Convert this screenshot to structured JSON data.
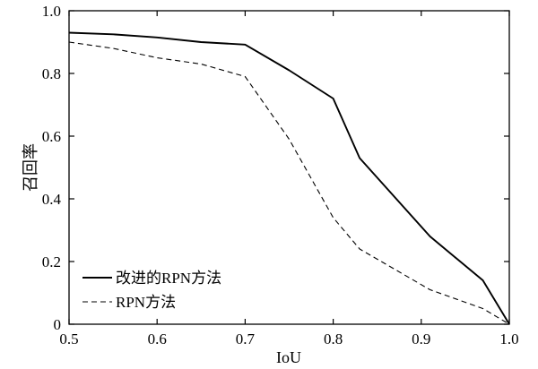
{
  "chart_data": {
    "type": "line",
    "title": "",
    "xlabel": "IoU",
    "ylabel": "召回率",
    "xlim": [
      0.5,
      1.0
    ],
    "ylim": [
      0,
      1.0
    ],
    "x_ticks": [
      "0.5",
      "0.6",
      "0.7",
      "0.8",
      "0.9",
      "1.0"
    ],
    "y_ticks": [
      "0",
      "0.2",
      "0.4",
      "0.6",
      "0.8",
      "1.0"
    ],
    "grid": false,
    "legend_position": "bottom-left",
    "series": [
      {
        "name": "改进的RPN方法",
        "style": "solid",
        "color": "#000000",
        "points": [
          [
            0.5,
            0.93
          ],
          [
            0.55,
            0.925
          ],
          [
            0.6,
            0.915
          ],
          [
            0.65,
            0.9
          ],
          [
            0.7,
            0.892
          ],
          [
            0.75,
            0.81
          ],
          [
            0.8,
            0.72
          ],
          [
            0.83,
            0.53
          ],
          [
            0.91,
            0.28
          ],
          [
            0.97,
            0.14
          ],
          [
            1.0,
            0.0
          ]
        ]
      },
      {
        "name": "RPN方法",
        "style": "dashed",
        "color": "#000000",
        "points": [
          [
            0.5,
            0.9
          ],
          [
            0.55,
            0.88
          ],
          [
            0.6,
            0.85
          ],
          [
            0.65,
            0.83
          ],
          [
            0.7,
            0.79
          ],
          [
            0.75,
            0.59
          ],
          [
            0.8,
            0.34
          ],
          [
            0.83,
            0.24
          ],
          [
            0.91,
            0.11
          ],
          [
            0.97,
            0.05
          ],
          [
            1.0,
            0.0
          ]
        ]
      }
    ]
  }
}
